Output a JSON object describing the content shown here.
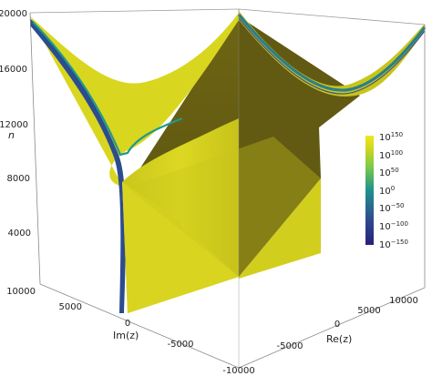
{
  "figure": {
    "n_axis": {
      "label": "n",
      "ticks": [
        "20000",
        "16000",
        "12000",
        "8000",
        "4000"
      ]
    },
    "im_axis": {
      "label": "Im(z)",
      "ticks": [
        "10000",
        "5000",
        "0",
        "-5000"
      ]
    },
    "re_axis": {
      "label": "Re(z)",
      "ticks": [
        "10000",
        "5000",
        "0",
        "-5000",
        "-10000"
      ]
    },
    "colorbar": {
      "labels": [
        {
          "base": "10",
          "exp": "150"
        },
        {
          "base": "10",
          "exp": "100"
        },
        {
          "base": "10",
          "exp": "50"
        },
        {
          "base": "10",
          "exp": "0"
        },
        {
          "base": "10",
          "exp": "−50"
        },
        {
          "base": "10",
          "exp": "−100"
        },
        {
          "base": "10",
          "exp": "−150"
        }
      ],
      "colors": [
        "#f2e51d",
        "#b8d43a",
        "#5ec962",
        "#21918c",
        "#2c728e",
        "#3b528b",
        "#440154"
      ]
    },
    "surface_colors": {
      "light": "#dcd820",
      "mid": "#c6c21a",
      "dark": "#6b6212",
      "darker": "#5e5610",
      "band": "#1f9a8a",
      "band_dark": "#2a3f8f"
    }
  }
}
